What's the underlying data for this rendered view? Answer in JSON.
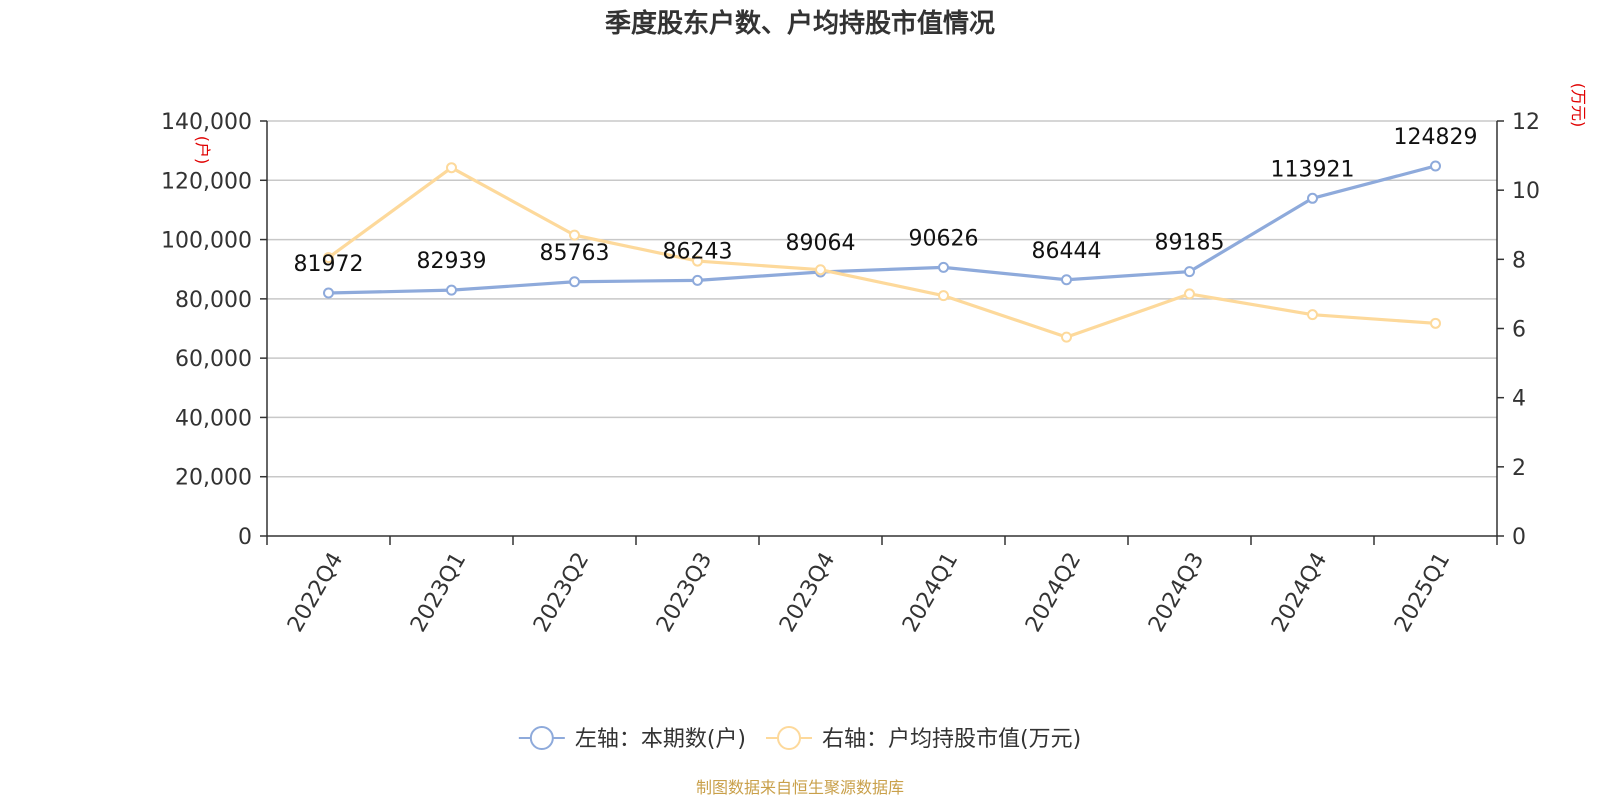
{
  "chart_data": {
    "type": "line",
    "title": "季度股东户数、户均持股市值情况",
    "categories": [
      "2022Q4",
      "2023Q1",
      "2023Q2",
      "2023Q3",
      "2023Q4",
      "2024Q1",
      "2024Q2",
      "2024Q3",
      "2024Q4",
      "2025Q1"
    ],
    "series": [
      {
        "name": "左轴：本期数(户)",
        "axis": "left",
        "color": "#8eaadb",
        "values": [
          81972,
          82939,
          85763,
          86243,
          89064,
          90626,
          86444,
          89185,
          113921,
          124829
        ],
        "labels": [
          "81972",
          "82939",
          "85763",
          "86243",
          "89064",
          "90626",
          "86444",
          "89185",
          "113921",
          "124829"
        ]
      },
      {
        "name": "右轴：户均持股市值(万元)",
        "axis": "right",
        "color": "#fdd99b",
        "values": [
          8.05,
          10.65,
          8.7,
          7.95,
          7.7,
          6.95,
          5.75,
          7.0,
          6.4,
          6.15
        ]
      }
    ],
    "left_axis": {
      "unit": "(户)",
      "ylim": [
        0,
        140000
      ],
      "ticks": [
        0,
        20000,
        40000,
        60000,
        80000,
        100000,
        120000,
        140000
      ],
      "tick_labels": [
        "0",
        "20,000",
        "40,000",
        "60,000",
        "80,000",
        "100,000",
        "120,000",
        "140,000"
      ]
    },
    "right_axis": {
      "unit": "(万元)",
      "ylim": [
        0,
        12
      ],
      "ticks": [
        0,
        2,
        4,
        6,
        8,
        10,
        12
      ],
      "tick_labels": [
        "0",
        "2",
        "4",
        "6",
        "8",
        "10",
        "12"
      ]
    },
    "grid": true,
    "legend_position": "bottom-center",
    "source": "制图数据来自恒生聚源数据库"
  }
}
